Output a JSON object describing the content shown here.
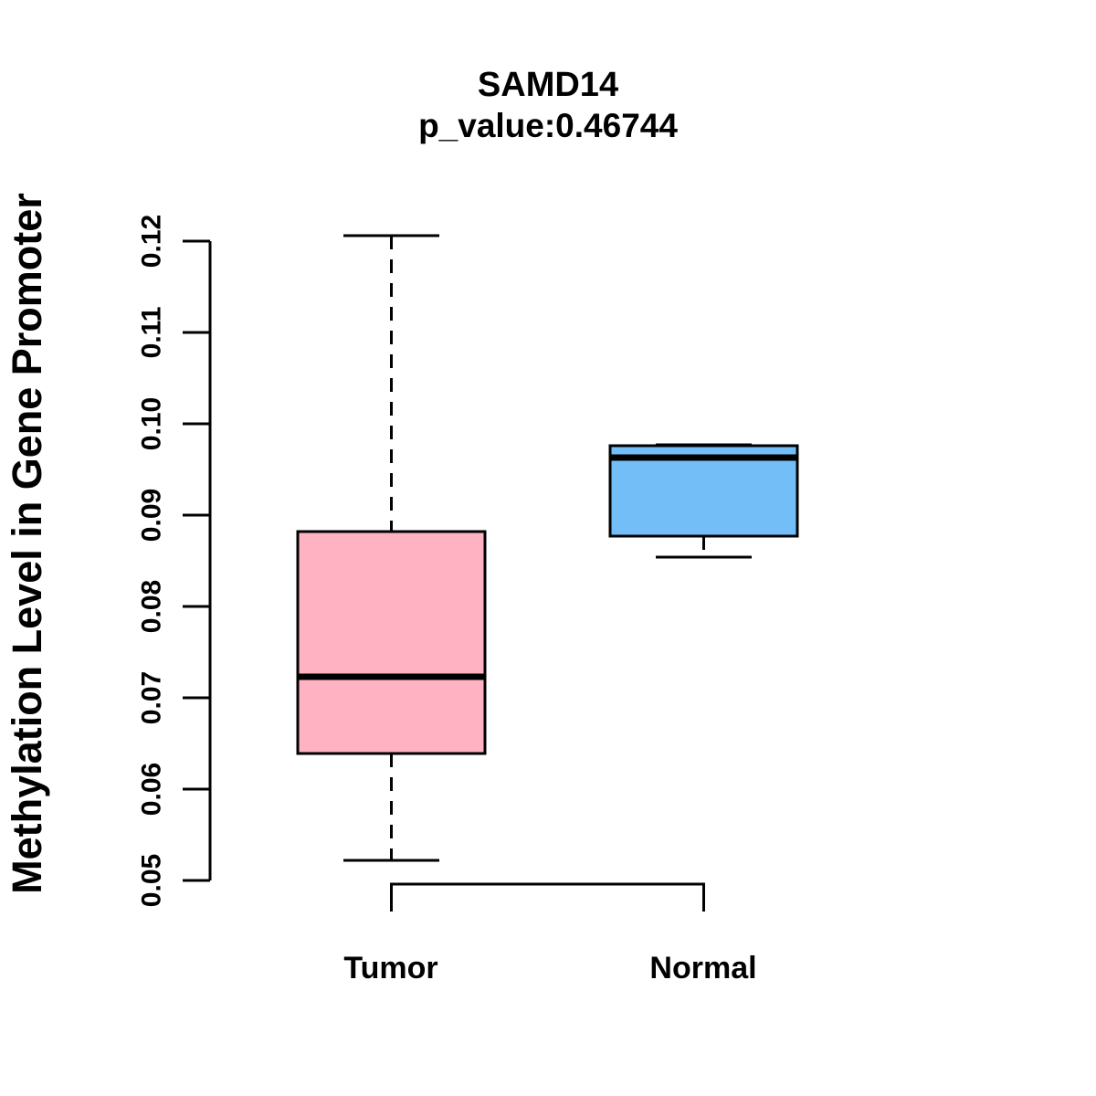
{
  "chart_data": {
    "type": "boxplot",
    "title": "SAMD14",
    "subtitle": "p_value:0.46744",
    "ylabel": "Methylation Level in Gene Promoter",
    "xlabel": "",
    "categories": [
      "Tumor",
      "Normal"
    ],
    "series": [
      {
        "name": "Tumor",
        "fill_color": "#FFB3C2",
        "whisker_low": 0.0522,
        "q1": 0.0639,
        "median": 0.0723,
        "q3": 0.0882,
        "whisker_high": 0.1206
      },
      {
        "name": "Normal",
        "fill_color": "#74BEF7",
        "whisker_low": 0.0854,
        "q1": 0.0877,
        "median": 0.0963,
        "q3": 0.0976,
        "whisker_high": 0.0977
      }
    ],
    "ylim": [
      0.05,
      0.12
    ],
    "yticks": [
      0.05,
      0.06,
      0.07,
      0.08,
      0.09,
      0.1,
      0.11,
      0.12
    ],
    "ytick_labels": [
      "0.05",
      "0.06",
      "0.07",
      "0.08",
      "0.09",
      "0.10",
      "0.11",
      "0.12"
    ],
    "line_color": "#000000",
    "background_color": "#FFFFFF",
    "grid": false,
    "legend_position": "none",
    "bottom_bracket_between": [
      "Tumor",
      "Normal"
    ]
  }
}
